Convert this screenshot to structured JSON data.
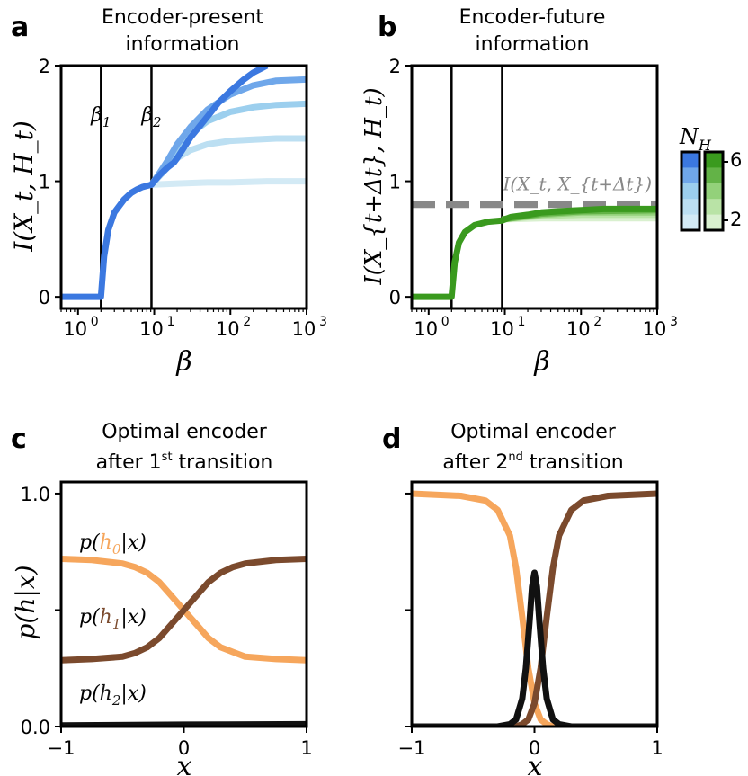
{
  "chart_data": [
    {
      "panel": "a",
      "type": "line",
      "title_lines": [
        "Encoder-present",
        "information"
      ],
      "xscale": "log",
      "xlabel": "β",
      "ylabel": "I(X_t, H_t)",
      "xlim": [
        0.6,
        1000
      ],
      "ylim": [
        -0.1,
        2.0
      ],
      "xticks": [
        {
          "base": "10",
          "exp": "0",
          "value": 1
        },
        {
          "base": "10",
          "exp": "1",
          "value": 10
        },
        {
          "base": "10",
          "exp": "2",
          "value": 100
        },
        {
          "base": "10",
          "exp": "3",
          "value": 1000
        }
      ],
      "yticks": [
        {
          "label": "0",
          "value": 0
        },
        {
          "label": "1",
          "value": 1
        },
        {
          "label": "2",
          "value": 2
        }
      ],
      "vlines": [
        {
          "x": 2,
          "label": "β",
          "sub": "1"
        },
        {
          "x": 9.2,
          "label": "β",
          "sub": "2"
        }
      ],
      "series": [
        {
          "name": "N_H = 2",
          "color": "#d3eaf5",
          "x": [
            9.2,
            20,
            50,
            100,
            300,
            1000
          ],
          "y": [
            0.97,
            0.98,
            0.99,
            0.99,
            1.0,
            1.0
          ]
        },
        {
          "name": "N_H = 3",
          "color": "#bcdff2",
          "x": [
            9.2,
            12,
            15,
            20,
            30,
            50,
            100,
            200,
            400,
            1000
          ],
          "y": [
            0.97,
            1.05,
            1.12,
            1.2,
            1.27,
            1.32,
            1.35,
            1.36,
            1.37,
            1.37
          ]
        },
        {
          "name": "N_H = 4",
          "color": "#9ccfee",
          "x": [
            9.2,
            12,
            15,
            20,
            30,
            50,
            100,
            200,
            400,
            1000
          ],
          "y": [
            0.97,
            1.08,
            1.16,
            1.28,
            1.41,
            1.52,
            1.6,
            1.64,
            1.66,
            1.67
          ]
        },
        {
          "name": "N_H = 5",
          "color": "#6fa7ea",
          "x": [
            9.2,
            12,
            15,
            20,
            30,
            50,
            100,
            200,
            400,
            1000
          ],
          "y": [
            0.97,
            1.08,
            1.18,
            1.32,
            1.47,
            1.62,
            1.75,
            1.83,
            1.87,
            1.88
          ]
        },
        {
          "name": "N_H = 6",
          "color": "#3b78e0",
          "x": [
            0.6,
            1.9,
            2.0,
            2.2,
            2.5,
            3,
            4,
            5,
            6,
            7,
            8,
            9.2,
            10,
            12,
            15,
            18,
            20,
            25,
            30,
            40,
            50,
            70,
            100,
            150,
            200,
            300
          ],
          "y": [
            0.0,
            0.0,
            0.0,
            0.35,
            0.58,
            0.73,
            0.84,
            0.9,
            0.93,
            0.95,
            0.96,
            0.97,
            1.0,
            1.06,
            1.12,
            1.16,
            1.2,
            1.3,
            1.38,
            1.48,
            1.56,
            1.68,
            1.78,
            1.88,
            1.94,
            2.0
          ]
        }
      ]
    },
    {
      "panel": "b",
      "type": "line",
      "title_lines": [
        "Encoder-future",
        "information"
      ],
      "xscale": "log",
      "xlabel": "β",
      "ylabel": "I(X_{t+Δt}, H_t)",
      "xlim": [
        0.6,
        1000
      ],
      "ylim": [
        -0.1,
        2.0
      ],
      "xticks": [
        {
          "base": "10",
          "exp": "0",
          "value": 1
        },
        {
          "base": "10",
          "exp": "1",
          "value": 10
        },
        {
          "base": "10",
          "exp": "2",
          "value": 100
        },
        {
          "base": "10",
          "exp": "3",
          "value": 1000
        }
      ],
      "yticks": [
        {
          "label": "0",
          "value": 0
        },
        {
          "label": "1",
          "value": 1
        },
        {
          "label": "2",
          "value": 2
        }
      ],
      "vlines": [
        {
          "x": 2
        },
        {
          "x": 9.2
        }
      ],
      "hline": {
        "y": 0.8,
        "label": "I(X_t, X_{t+Δt})",
        "color": "#888888"
      },
      "series": [
        {
          "name": "N_H = 2",
          "color": "#d9f0cf",
          "x": [
            9.2,
            30,
            100,
            1000
          ],
          "y": [
            0.67,
            0.68,
            0.68,
            0.68
          ]
        },
        {
          "name": "N_H = 3",
          "color": "#b9e3a6",
          "x": [
            9.2,
            30,
            100,
            1000
          ],
          "y": [
            0.67,
            0.7,
            0.71,
            0.71
          ]
        },
        {
          "name": "N_H = 4",
          "color": "#93d17a",
          "x": [
            9.2,
            30,
            100,
            1000
          ],
          "y": [
            0.67,
            0.71,
            0.73,
            0.73
          ]
        },
        {
          "name": "N_H = 5",
          "color": "#63b347",
          "x": [
            9.2,
            30,
            100,
            1000
          ],
          "y": [
            0.67,
            0.72,
            0.74,
            0.75
          ]
        },
        {
          "name": "N_H = 6",
          "color": "#3a9a1e",
          "x": [
            0.6,
            1.9,
            2.0,
            2.2,
            2.5,
            3,
            4,
            6,
            9.2,
            12,
            20,
            30,
            50,
            100,
            200,
            500,
            1000
          ],
          "y": [
            0.0,
            0.0,
            0.0,
            0.3,
            0.47,
            0.56,
            0.62,
            0.65,
            0.66,
            0.69,
            0.71,
            0.73,
            0.74,
            0.75,
            0.76,
            0.76,
            0.76
          ]
        }
      ]
    },
    {
      "panel": "c",
      "type": "line",
      "title_lines": [
        "Optimal encoder",
        "after 1",
        "st",
        " transition"
      ],
      "xlabel": "x",
      "ylabel": "p(h|x)",
      "xlim": [
        -1,
        1
      ],
      "ylim": [
        0,
        1.05
      ],
      "xticks": [
        {
          "label": "−1",
          "value": -1
        },
        {
          "label": "0",
          "value": 0
        },
        {
          "label": "1",
          "value": 1
        }
      ],
      "yticks": [
        {
          "label": "0.0",
          "value": 0
        },
        {
          "label": "",
          "value": 0.5
        },
        {
          "label": "1.0",
          "value": 1
        }
      ],
      "series": [
        {
          "name": "p(h_0|x)",
          "color": "#f6a65c",
          "label": [
            "p(",
            "h",
            "0",
            "|x)"
          ],
          "x": [
            -1,
            -0.75,
            -0.5,
            -0.4,
            -0.3,
            -0.2,
            -0.1,
            0,
            0.1,
            0.2,
            0.3,
            0.4,
            0.5,
            0.75,
            1
          ],
          "y": [
            0.72,
            0.715,
            0.7,
            0.685,
            0.66,
            0.62,
            0.56,
            0.5,
            0.44,
            0.38,
            0.34,
            0.32,
            0.3,
            0.29,
            0.285
          ]
        },
        {
          "name": "p(h_1|x)",
          "color": "#7b4a2d",
          "label": [
            "p(",
            "h",
            "1",
            "|x)"
          ],
          "x": [
            -1,
            -0.75,
            -0.5,
            -0.4,
            -0.3,
            -0.2,
            -0.1,
            0,
            0.1,
            0.2,
            0.3,
            0.4,
            0.5,
            0.75,
            1
          ],
          "y": [
            0.285,
            0.29,
            0.3,
            0.315,
            0.34,
            0.38,
            0.44,
            0.5,
            0.56,
            0.62,
            0.66,
            0.685,
            0.7,
            0.715,
            0.72
          ]
        },
        {
          "name": "p(h_2|x)",
          "color": "#111111",
          "label": [
            "p(",
            "h",
            "2",
            "|x)"
          ],
          "x": [
            -1,
            0,
            1
          ],
          "y": [
            0.005,
            0.008,
            0.01
          ]
        }
      ]
    },
    {
      "panel": "d",
      "type": "line",
      "title_lines": [
        "Optimal encoder",
        "after 2",
        "nd",
        " transition"
      ],
      "xlabel": "x",
      "xlim": [
        -1,
        1
      ],
      "ylim": [
        0,
        1.05
      ],
      "xticks": [
        {
          "label": "−1",
          "value": -1
        },
        {
          "label": "0",
          "value": 0
        },
        {
          "label": "1",
          "value": 1
        }
      ],
      "yticks": [
        {
          "label": "",
          "value": 0
        },
        {
          "label": "",
          "value": 0.5
        },
        {
          "label": "",
          "value": 1
        }
      ],
      "series": [
        {
          "name": "orange",
          "color": "#f6a65c",
          "x": [
            -1,
            -0.6,
            -0.4,
            -0.3,
            -0.2,
            -0.15,
            -0.1,
            -0.05,
            0,
            0.05,
            0.1,
            0.15,
            0.25,
            0.5,
            1
          ],
          "y": [
            1.0,
            0.99,
            0.97,
            0.93,
            0.82,
            0.68,
            0.47,
            0.25,
            0.1,
            0.03,
            0.01,
            0.0,
            0.0,
            0.0,
            0.0
          ]
        },
        {
          "name": "brown",
          "color": "#7b4a2d",
          "x": [
            -1,
            -0.5,
            -0.25,
            -0.15,
            -0.1,
            -0.05,
            0,
            0.05,
            0.1,
            0.15,
            0.2,
            0.3,
            0.4,
            0.6,
            1
          ],
          "y": [
            0.0,
            0.0,
            0.0,
            0.0,
            0.01,
            0.03,
            0.1,
            0.25,
            0.47,
            0.68,
            0.82,
            0.93,
            0.97,
            0.99,
            1.0
          ]
        },
        {
          "name": "black",
          "color": "#111111",
          "x": [
            -1,
            -0.3,
            -0.2,
            -0.15,
            -0.1,
            -0.07,
            -0.04,
            -0.02,
            0,
            0.02,
            0.04,
            0.07,
            0.1,
            0.15,
            0.2,
            0.3,
            1
          ],
          "y": [
            0.0,
            0.0,
            0.01,
            0.03,
            0.12,
            0.25,
            0.45,
            0.6,
            0.66,
            0.6,
            0.45,
            0.25,
            0.12,
            0.03,
            0.01,
            0.0,
            0.0
          ]
        }
      ]
    }
  ],
  "colorbar": {
    "label_main": "N",
    "label_sub": "H",
    "ticks": [
      "6",
      "2"
    ],
    "blue_steps": [
      "#3b78e0",
      "#6fa7ea",
      "#9ccfee",
      "#bcdff2",
      "#d3eaf5"
    ],
    "green_steps": [
      "#3a9a1e",
      "#63b347",
      "#93d17a",
      "#b9e3a6",
      "#d9f0cf"
    ]
  }
}
